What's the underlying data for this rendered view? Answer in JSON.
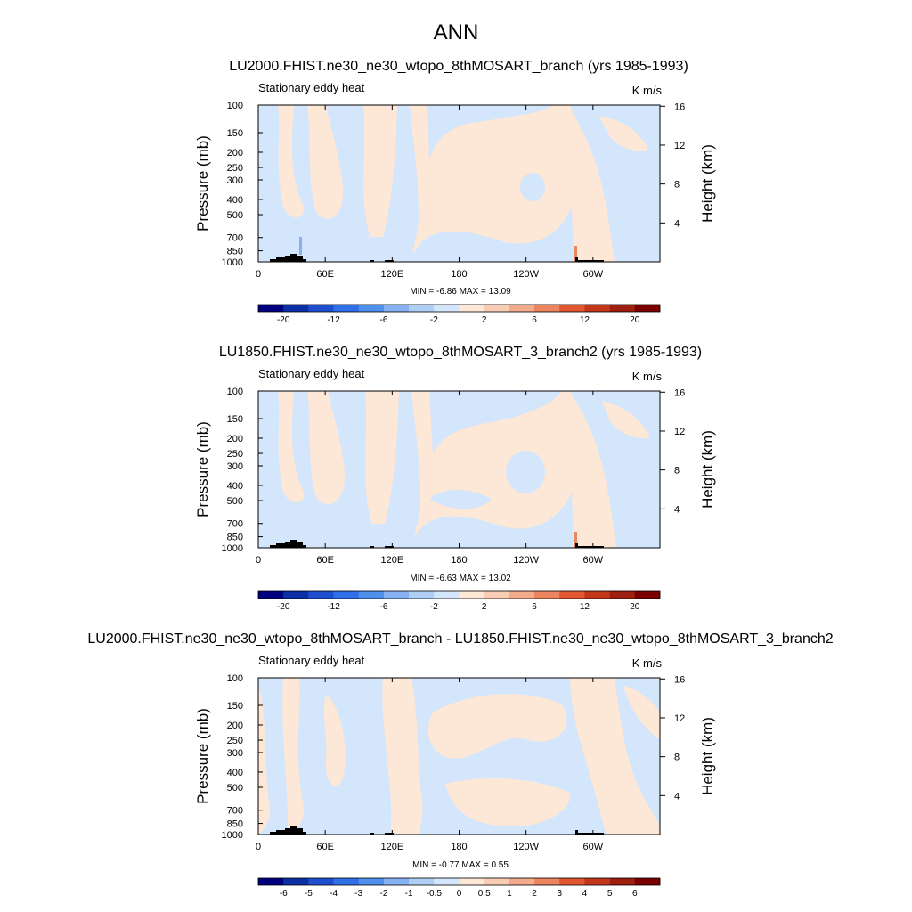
{
  "figure": {
    "title": "ANN"
  },
  "palettes": {
    "full": [
      "#00007f",
      "#0b2fa4",
      "#1f4fd0",
      "#2f6fe8",
      "#4f90ef",
      "#86b1f2",
      "#b0cff7",
      "#d4e6fb",
      "#fde7d7",
      "#f9cdb3",
      "#f3ab8c",
      "#ec845f",
      "#e2572f",
      "#c3361a",
      "#9e1f10",
      "#7a0000"
    ],
    "diff": [
      "#00007f",
      "#0b2fa4",
      "#1f4fd0",
      "#2f6fe8",
      "#4f90ef",
      "#86b1f2",
      "#b0cff7",
      "#d4e6fb",
      "#fde7d7",
      "#f9cdb3",
      "#f3ab8c",
      "#ec845f",
      "#e2572f",
      "#c3361a",
      "#9e1f10",
      "#7a0000"
    ]
  },
  "chart_data": [
    {
      "type": "heatmap",
      "title": "LU2000.FHIST.ne30_ne30_wtopo_8thMOSART_branch (yrs 1985-1993)",
      "left_string": "Stationary eddy heat",
      "right_string": "K m/s",
      "ylabel": "Pressure (mb)",
      "ylabel_right": "Height (km)",
      "xticks": [
        "0",
        "60E",
        "120E",
        "180",
        "120W",
        "60W"
      ],
      "yticks": [
        "100",
        "150",
        "200",
        "250",
        "300",
        "400",
        "500",
        "700",
        "850",
        "1000"
      ],
      "yticks_right": [
        "16",
        "12",
        "8",
        "4"
      ],
      "stats": "MIN =  -6.86  MAX =  13.09",
      "colorbar_palette": "full",
      "colorbar_labels": [
        "-20",
        "-12",
        "-6",
        "-2",
        "2",
        "6",
        "12",
        "20"
      ]
    },
    {
      "type": "heatmap",
      "title": "LU1850.FHIST.ne30_ne30_wtopo_8thMOSART_3_branch2 (yrs 1985-1993)",
      "left_string": "Stationary eddy heat",
      "right_string": "K m/s",
      "ylabel": "Pressure (mb)",
      "ylabel_right": "Height (km)",
      "xticks": [
        "0",
        "60E",
        "120E",
        "180",
        "120W",
        "60W"
      ],
      "yticks": [
        "100",
        "150",
        "200",
        "250",
        "300",
        "400",
        "500",
        "700",
        "850",
        "1000"
      ],
      "yticks_right": [
        "16",
        "12",
        "8",
        "4"
      ],
      "stats": "MIN =  -6.63  MAX =  13.02",
      "colorbar_palette": "full",
      "colorbar_labels": [
        "-20",
        "-12",
        "-6",
        "-2",
        "2",
        "6",
        "12",
        "20"
      ]
    },
    {
      "type": "heatmap",
      "title": "LU2000.FHIST.ne30_ne30_wtopo_8thMOSART_branch - LU1850.FHIST.ne30_ne30_wtopo_8thMOSART_3_branch2",
      "left_string": "Stationary eddy heat",
      "right_string": "K m/s",
      "ylabel": "Pressure (mb)",
      "ylabel_right": "Height (km)",
      "xticks": [
        "0",
        "60E",
        "120E",
        "180",
        "120W",
        "60W"
      ],
      "yticks": [
        "100",
        "150",
        "200",
        "250",
        "300",
        "400",
        "500",
        "700",
        "850",
        "1000"
      ],
      "yticks_right": [
        "16",
        "12",
        "8",
        "4"
      ],
      "stats": "MIN =  -0.77  MAX =  0.55",
      "colorbar_palette": "diff",
      "colorbar_labels": [
        "-6",
        "-5",
        "-4",
        "-3",
        "-2",
        "-1",
        "-0.5",
        "0",
        "0.5",
        "1",
        "2",
        "3",
        "4",
        "5",
        "6"
      ]
    }
  ]
}
